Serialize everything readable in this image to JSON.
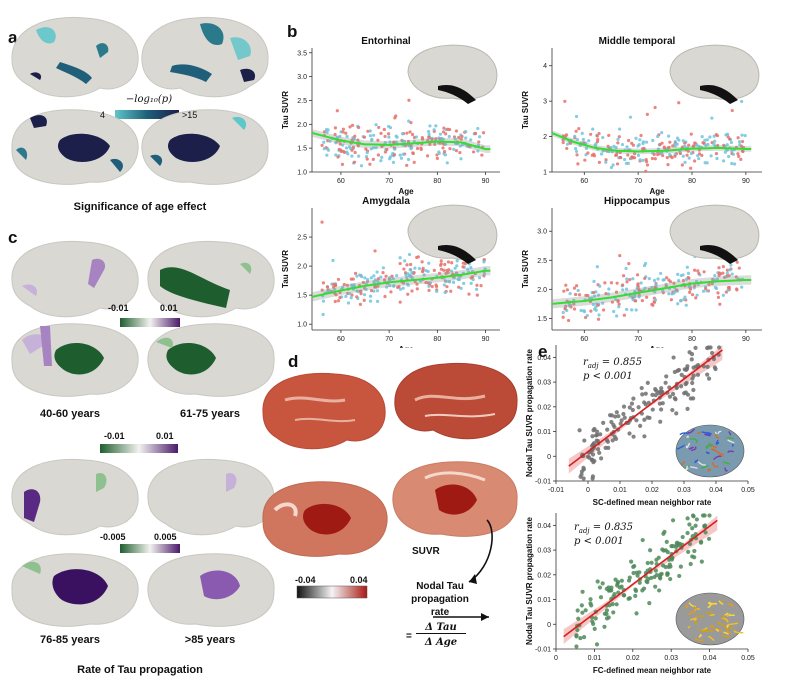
{
  "panels": {
    "a": {
      "label": "a",
      "caption": "Significance of age effect",
      "colorbar": {
        "title": "−log₁₀(p)",
        "min": "4",
        "max": ">15",
        "colors": [
          "#5fc6c9",
          "#1f5f7a",
          "#1b1f4a"
        ]
      }
    },
    "b": {
      "label": "b",
      "ylabel": "Tau SUVR",
      "xlabel": "Age",
      "plots": [
        "Entorhinal",
        "Middle temporal",
        "Amygdala",
        "Hippocampus"
      ]
    },
    "c": {
      "label": "c",
      "caption": "Rate of Tau propagation",
      "colorbar_top": {
        "min": "-0.01",
        "max": "0.01"
      },
      "colorbar_mid": {
        "min": "-0.01",
        "max": "0.01"
      },
      "colorbar_bot": {
        "min": "-0.005",
        "max": "0.005"
      },
      "groups": [
        "40-60 years",
        "61-75 years",
        "76-85 years",
        ">85 years"
      ]
    },
    "d": {
      "label": "d",
      "suvr_label": "SUVR",
      "colorbar": {
        "min": "-0.04",
        "max": "0.04"
      },
      "rate_label_1": "Nodal Tau",
      "rate_label_2": "propagation",
      "rate_label_3": "rate",
      "formula_eq": "=",
      "formula_num": "Δ Tau",
      "formula_den": "Δ Age"
    },
    "e": {
      "label": "e",
      "ylabel": "Nodal Tau SUVR propagation rate",
      "top": {
        "xlabel": "SC-defined mean neighbor rate",
        "r": "r",
        "r_sub": "adj",
        "r_val": " = 0.855",
        "p": "p < 0.001"
      },
      "bottom": {
        "xlabel": "FC-defined mean neighbor rate",
        "r": "r",
        "r_sub": "adj",
        "r_val": " = 0.835",
        "p": "p < 0.001"
      }
    }
  },
  "chart_data": [
    {
      "type": "scatter",
      "title": "Entorhinal",
      "xlabel": "Age",
      "ylabel": "Tau SUVR",
      "xlim": [
        54,
        93
      ],
      "ylim": [
        1.0,
        3.6
      ],
      "xticks": [
        60,
        70,
        80,
        90
      ],
      "yticks": [
        1.0,
        1.5,
        2.0,
        2.5,
        3.0,
        3.5
      ],
      "trend": [
        [
          54,
          1.82
        ],
        [
          60,
          1.66
        ],
        [
          65,
          1.58
        ],
        [
          70,
          1.57
        ],
        [
          75,
          1.6
        ],
        [
          80,
          1.64
        ],
        [
          85,
          1.62
        ],
        [
          90,
          1.48
        ]
      ],
      "series": [
        {
          "name": "",
          "color": "#e8706a"
        },
        {
          "name": "",
          "color": "#6fc4de"
        }
      ]
    },
    {
      "type": "scatter",
      "title": "Middle temporal",
      "xlabel": "Age",
      "ylabel": "Tau SUVR",
      "xlim": [
        54,
        93
      ],
      "ylim": [
        1.0,
        4.5
      ],
      "xticks": [
        60,
        70,
        80,
        90
      ],
      "yticks": [
        1,
        2,
        3,
        4
      ],
      "trend": [
        [
          54,
          2.1
        ],
        [
          58,
          1.85
        ],
        [
          62,
          1.68
        ],
        [
          66,
          1.6
        ],
        [
          70,
          1.58
        ],
        [
          75,
          1.6
        ],
        [
          80,
          1.66
        ],
        [
          85,
          1.68
        ],
        [
          90,
          1.65
        ]
      ],
      "series": [
        {
          "name": "",
          "color": "#e8706a"
        },
        {
          "name": "",
          "color": "#6fc4de"
        }
      ]
    },
    {
      "type": "scatter",
      "title": "Amygdala",
      "xlabel": "Age",
      "ylabel": "Tau SUVR",
      "xlim": [
        54,
        93
      ],
      "ylim": [
        0.9,
        3.0
      ],
      "xticks": [
        60,
        70,
        80,
        90
      ],
      "yticks": [
        1.0,
        1.5,
        2.0,
        2.5
      ],
      "trend": [
        [
          54,
          1.47
        ],
        [
          60,
          1.58
        ],
        [
          65,
          1.66
        ],
        [
          70,
          1.72
        ],
        [
          75,
          1.76
        ],
        [
          80,
          1.8
        ],
        [
          85,
          1.85
        ],
        [
          90,
          1.92
        ]
      ],
      "series": [
        {
          "name": "",
          "color": "#e8706a"
        },
        {
          "name": "",
          "color": "#6fc4de"
        }
      ]
    },
    {
      "type": "scatter",
      "title": "Hippocampus",
      "xlabel": "Age",
      "ylabel": "Tau SUVR",
      "xlim": [
        54,
        93
      ],
      "ylim": [
        1.3,
        3.4
      ],
      "xticks": [
        60,
        70,
        80,
        90
      ],
      "yticks": [
        1.5,
        2.0,
        2.5,
        3.0
      ],
      "trend": [
        [
          54,
          1.75
        ],
        [
          60,
          1.8
        ],
        [
          65,
          1.86
        ],
        [
          70,
          1.94
        ],
        [
          75,
          2.02
        ],
        [
          80,
          2.1
        ],
        [
          85,
          2.14
        ],
        [
          90,
          2.16
        ]
      ],
      "series": [
        {
          "name": "",
          "color": "#e8706a"
        },
        {
          "name": "",
          "color": "#6fc4de"
        }
      ]
    },
    {
      "type": "scatter",
      "xlabel": "SC-defined mean neighbor rate",
      "ylabel": "Nodal Tau SUVR propagation rate",
      "xlim": [
        -0.01,
        0.05
      ],
      "ylim": [
        -0.01,
        0.045
      ],
      "xticks": [
        -0.01,
        0,
        0.01,
        0.02,
        0.03,
        0.04,
        0.05
      ],
      "yticks": [
        -0.01,
        0,
        0.01,
        0.02,
        0.03,
        0.04
      ],
      "fit": [
        [
          -0.006,
          -0.004
        ],
        [
          0.042,
          0.043
        ]
      ],
      "series": [
        {
          "name": "",
          "color": "#6e6e6e"
        }
      ]
    },
    {
      "type": "scatter",
      "xlabel": "FC-defined mean neighbor rate",
      "ylabel": "Nodal Tau SUVR propagation rate",
      "xlim": [
        0,
        0.05
      ],
      "ylim": [
        -0.01,
        0.045
      ],
      "xticks": [
        0,
        0.01,
        0.02,
        0.03,
        0.04,
        0.05
      ],
      "yticks": [
        -0.01,
        0,
        0.01,
        0.02,
        0.03,
        0.04
      ],
      "fit": [
        [
          0.002,
          -0.005
        ],
        [
          0.042,
          0.042
        ]
      ],
      "series": [
        {
          "name": "",
          "color": "#4f8a5a"
        }
      ]
    }
  ]
}
